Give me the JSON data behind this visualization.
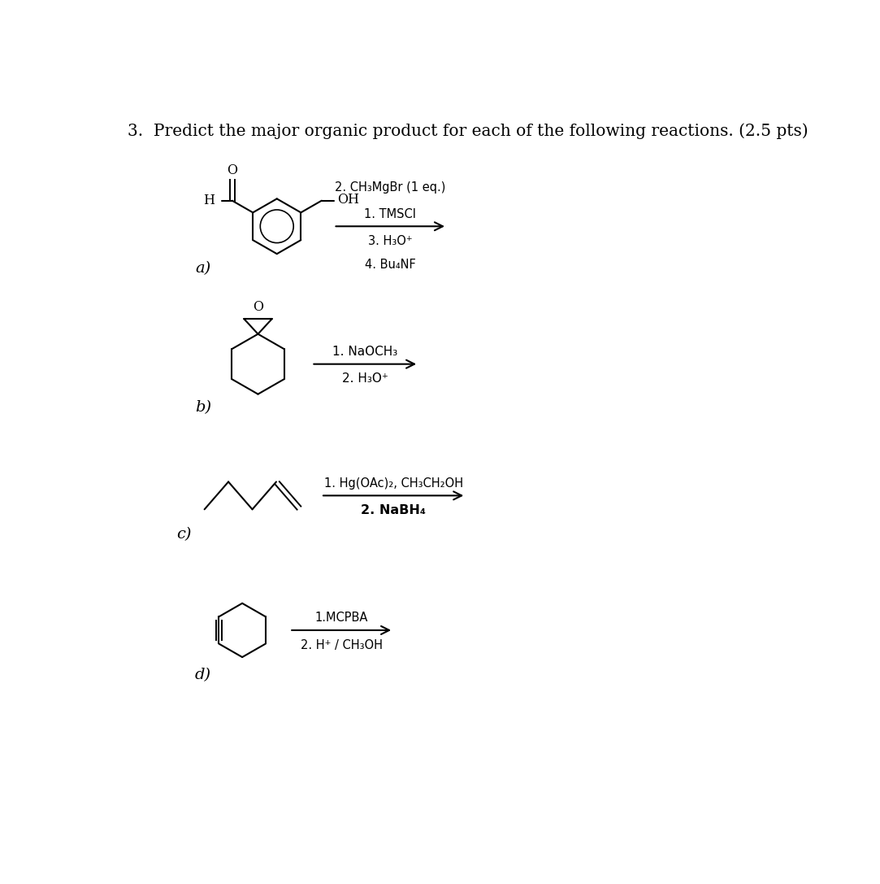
{
  "title": "3.  Predict the major organic product for each of the following reactions. (2.5 pts)",
  "title_fontsize": 14.5,
  "bg_color": "#ffffff",
  "text_color": "#000000",
  "reactions": [
    {
      "label": "a)",
      "r1": "1. TMSCI",
      "r2": "2. CH₃MgBr (1 eq.)",
      "r3": "3. H₃O⁺",
      "r4": "4. Bu₄NF"
    },
    {
      "label": "b)",
      "r1": "1. NaOCH₃",
      "r2": "2. H₃O⁺"
    },
    {
      "label": "c)",
      "r1": "1. Hg(OAc)₂, CH₃CH₂OH",
      "r2": "2. NaBH₄"
    },
    {
      "label": "d)",
      "r1": "1.MCPBA",
      "r2": "2. H⁺ / CH₃OH"
    }
  ]
}
